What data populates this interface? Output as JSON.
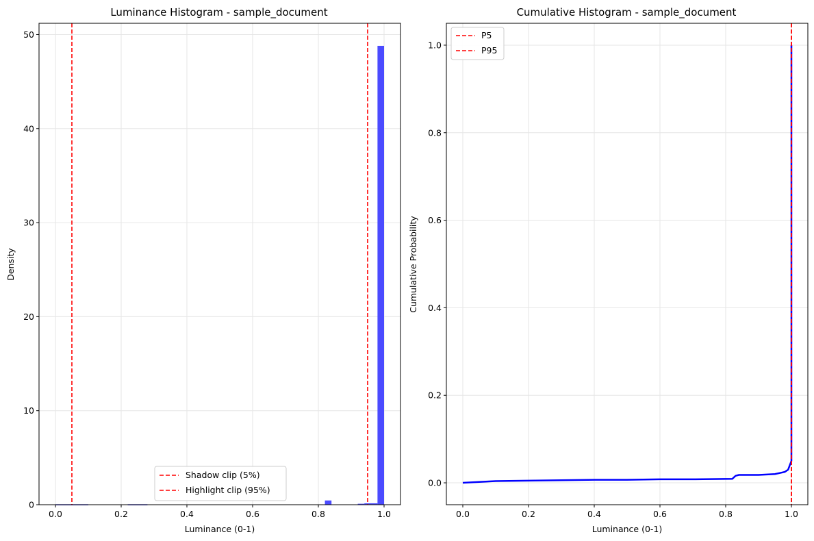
{
  "chart_data": [
    {
      "type": "bar",
      "title": "Luminance Histogram - sample_document",
      "xlabel": "Luminance (0-1)",
      "ylabel": "Density",
      "xlim": [
        -0.05,
        1.05
      ],
      "ylim": [
        0,
        51.2
      ],
      "xticks": [
        "0.0",
        "0.2",
        "0.4",
        "0.6",
        "0.8",
        "1.0"
      ],
      "yticks": [
        "0",
        "10",
        "20",
        "30",
        "40",
        "50"
      ],
      "grid": true,
      "bar_color": "#4b4bff",
      "bins": [
        {
          "x0": 0.0,
          "x1": 0.1,
          "value": 0.05
        },
        {
          "x0": 0.22,
          "x1": 0.28,
          "value": 0.05
        },
        {
          "x0": 0.82,
          "x1": 0.84,
          "value": 0.45
        },
        {
          "x0": 0.92,
          "x1": 0.94,
          "value": 0.1
        },
        {
          "x0": 0.94,
          "x1": 0.98,
          "value": 0.15
        },
        {
          "x0": 0.98,
          "x1": 1.0,
          "value": 48.8
        }
      ],
      "vlines": [
        {
          "x": 0.05,
          "label": "Shadow clip (5%)",
          "color": "#ff0000"
        },
        {
          "x": 0.95,
          "label": "Highlight clip (95%)",
          "color": "#ff0000"
        }
      ],
      "legend_position": "bottom-center"
    },
    {
      "type": "line",
      "title": "Cumulative Histogram - sample_document",
      "xlabel": "Luminance (0-1)",
      "ylabel": "Cumulative Probability",
      "xlim": [
        -0.05,
        1.05
      ],
      "ylim": [
        -0.05,
        1.05
      ],
      "xticks": [
        "0.0",
        "0.2",
        "0.4",
        "0.6",
        "0.8",
        "1.0"
      ],
      "yticks": [
        "0.0",
        "0.2",
        "0.4",
        "0.6",
        "0.8",
        "1.0"
      ],
      "grid": true,
      "line_color": "#0000ff",
      "points": [
        [
          0.0,
          0.0
        ],
        [
          0.05,
          0.002
        ],
        [
          0.1,
          0.004
        ],
        [
          0.2,
          0.005
        ],
        [
          0.3,
          0.006
        ],
        [
          0.4,
          0.007
        ],
        [
          0.5,
          0.007
        ],
        [
          0.6,
          0.008
        ],
        [
          0.7,
          0.008
        ],
        [
          0.82,
          0.009
        ],
        [
          0.83,
          0.016
        ],
        [
          0.84,
          0.018
        ],
        [
          0.9,
          0.018
        ],
        [
          0.95,
          0.02
        ],
        [
          0.98,
          0.025
        ],
        [
          0.99,
          0.03
        ],
        [
          0.995,
          0.04
        ],
        [
          1.0,
          0.05
        ],
        [
          1.0,
          1.0
        ]
      ],
      "vlines": [
        {
          "x": 1.0,
          "label": "P5",
          "color": "#ff0000"
        },
        {
          "x": 1.0,
          "label": "P95",
          "color": "#ff0000"
        }
      ],
      "legend_position": "top-left"
    }
  ]
}
